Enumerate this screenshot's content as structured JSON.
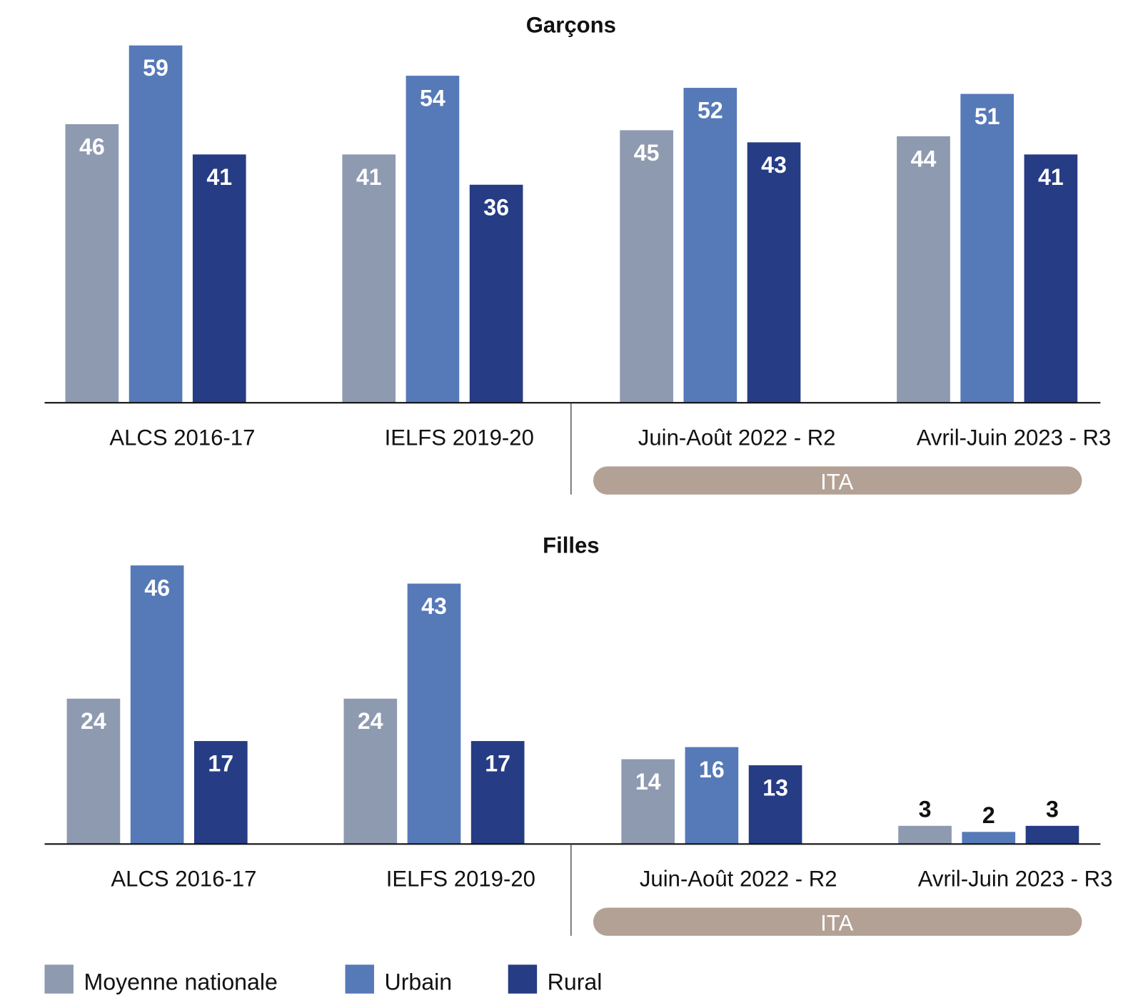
{
  "chart_data": [
    {
      "type": "bar",
      "title": "Garçons",
      "categories": [
        "ALCS 2016-17",
        "IELFS 2019-20",
        "Juin-Août 2022 - R2",
        "Avril-Juin 2023 - R3"
      ],
      "series": [
        {
          "name": "Moyenne nationale",
          "values": [
            46,
            41,
            45,
            44
          ]
        },
        {
          "name": "Urbain",
          "values": [
            59,
            54,
            52,
            51
          ]
        },
        {
          "name": "Rural",
          "values": [
            41,
            36,
            43,
            41
          ]
        }
      ],
      "group_label": "ITA",
      "ylim": [
        0,
        60
      ]
    },
    {
      "type": "bar",
      "title": "Filles",
      "categories": [
        "ALCS 2016-17",
        "IELFS 2019-20",
        "Juin-Août 2022 - R2",
        "Avril-Juin 2023 - R3"
      ],
      "series": [
        {
          "name": "Moyenne nationale",
          "values": [
            24,
            24,
            14,
            3
          ]
        },
        {
          "name": "Urbain",
          "values": [
            46,
            43,
            16,
            2
          ]
        },
        {
          "name": "Rural",
          "values": [
            17,
            17,
            13,
            3
          ]
        }
      ],
      "group_label": "ITA",
      "ylim": [
        0,
        60
      ]
    }
  ],
  "legend": [
    "Moyenne nationale",
    "Urbain",
    "Rural"
  ],
  "colors": [
    "#8e9ab0",
    "#5679b8",
    "#263c84"
  ],
  "pill_color": "#b3a195"
}
